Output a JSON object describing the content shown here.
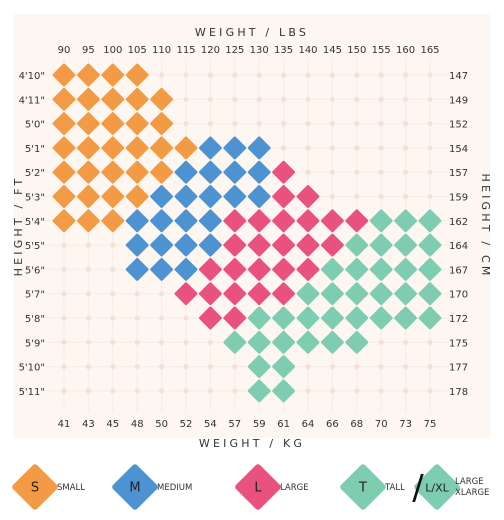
{
  "chart_data": {
    "type": "heatmap",
    "title_top": "WEIGHT / LBS",
    "title_bottom": "WEIGHT / KG",
    "title_left": "HEIGHT / FT",
    "title_right": "HEIGHT / CM",
    "x_lbs": [
      "90",
      "95",
      "100",
      "105",
      "110",
      "115",
      "120",
      "125",
      "130",
      "135",
      "140",
      "145",
      "150",
      "155",
      "160",
      "165"
    ],
    "x_kg": [
      "41",
      "43",
      "45",
      "48",
      "50",
      "52",
      "54",
      "57",
      "59",
      "61",
      "64",
      "66",
      "68",
      "70",
      "73",
      "75"
    ],
    "y_ft": [
      "4'10\"",
      "4'11\"",
      "5'0\"",
      "5'1\"",
      "5'2\"",
      "5'3\"",
      "5'4\"",
      "5'5\"",
      "5'6\"",
      "5'7\"",
      "5'8\"",
      "5'9\"",
      "5'10\"",
      "5'11\""
    ],
    "y_cm": [
      "147",
      "149",
      "152",
      "154",
      "157",
      "159",
      "162",
      "164",
      "167",
      "170",
      "172",
      "175",
      "177",
      "178"
    ],
    "size_colors": {
      "S": "#F39A44",
      "M": "#4E93D1",
      "L": "#E9527F",
      "T": "#7FCDB0",
      "LXL": "#7FCDB0"
    },
    "rows": [
      "SSSS............",
      "SSSSS...........",
      "SSSSS...........",
      "SSSSSSMMM.......",
      "SSSSSMMMML......",
      "SSSSMMMMMLL.....",
      "SSSMMMMLLLLLLTTT",
      "...MMMMLLLLLTTTT",
      "...MMMLLLLLTTTTT",
      ".....LLLLLTTTTTT",
      "......LLTTTTTTTT",
      ".......TTTTTT...",
      "........TT......",
      "........TT......"
    ]
  },
  "legend": [
    {
      "key": "S",
      "letter": "S",
      "label": "SMALL"
    },
    {
      "key": "M",
      "letter": "M",
      "label": "MEDIUM"
    },
    {
      "key": "L",
      "letter": "L",
      "label": "LARGE"
    },
    {
      "key": "T",
      "letter": "T",
      "label": "TALL"
    },
    {
      "key": "LXL",
      "letter": "L/XL",
      "label": "LARGE",
      "label2": "XLARGE"
    }
  ],
  "legend_separator": "/",
  "colors": {
    "background": "#FDF6F1",
    "grid_dot": "#F3E1D6",
    "grid_line": "#F7ECE4",
    "text": "#333333"
  }
}
